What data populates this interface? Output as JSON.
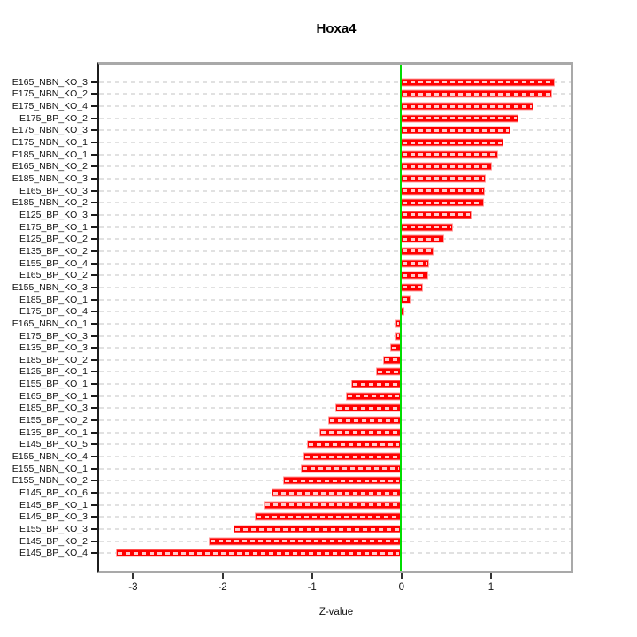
{
  "figure": {
    "title": "Hoxa4",
    "xlabel": "Z-value"
  },
  "chart_data": {
    "type": "bar",
    "orientation": "horizontal",
    "title": "Hoxa4",
    "xlabel": "Z-value",
    "ylabel": "",
    "xlim": [
      -3.38,
      1.9
    ],
    "xticks": [
      -3,
      -2,
      -1,
      0,
      1
    ],
    "grid": "dashed horizontal line per category",
    "zero_line": 0,
    "legend": "none",
    "categories": [
      "E165_NBN_KO_3",
      "E175_NBN_KO_2",
      "E175_NBN_KO_4",
      "E175_BP_KO_2",
      "E175_NBN_KO_3",
      "E175_NBN_KO_1",
      "E185_NBN_KO_1",
      "E165_NBN_KO_2",
      "E185_NBN_KO_3",
      "E165_BP_KO_3",
      "E185_NBN_KO_2",
      "E125_BP_KO_3",
      "E175_BP_KO_1",
      "E125_BP_KO_2",
      "E135_BP_KO_2",
      "E155_BP_KO_4",
      "E165_BP_KO_2",
      "E155_NBN_KO_3",
      "E185_BP_KO_1",
      "E175_BP_KO_4",
      "E165_NBN_KO_1",
      "E175_BP_KO_3",
      "E135_BP_KO_3",
      "E185_BP_KO_2",
      "E125_BP_KO_1",
      "E155_BP_KO_1",
      "E165_BP_KO_1",
      "E185_BP_KO_3",
      "E155_BP_KO_2",
      "E135_BP_KO_1",
      "E145_BP_KO_5",
      "E155_NBN_KO_4",
      "E155_NBN_KO_1",
      "E155_NBN_KO_2",
      "E145_BP_KO_6",
      "E145_BP_KO_1",
      "E145_BP_KO_3",
      "E155_BP_KO_3",
      "E145_BP_KO_2",
      "E145_BP_KO_4"
    ],
    "values": [
      1.72,
      1.69,
      1.48,
      1.32,
      1.23,
      1.15,
      1.09,
      1.02,
      0.95,
      0.94,
      0.93,
      0.79,
      0.58,
      0.48,
      0.36,
      0.32,
      0.31,
      0.25,
      0.11,
      0.04,
      -0.06,
      -0.06,
      -0.12,
      -0.2,
      -0.28,
      -0.56,
      -0.62,
      -0.74,
      -0.81,
      -0.91,
      -1.05,
      -1.09,
      -1.12,
      -1.32,
      -1.45,
      -1.54,
      -1.64,
      -1.87,
      -2.15,
      -3.19
    ],
    "colors": {
      "bar_fill": "#ff0000",
      "bar_border": "#ff9d9d",
      "zero_line": "#00dd00",
      "gridline": "#e1e1e1",
      "box_border": "#a9a9a9",
      "axis_line": "#1c1c1c",
      "text": "#111111",
      "background": "#ffffff"
    }
  }
}
